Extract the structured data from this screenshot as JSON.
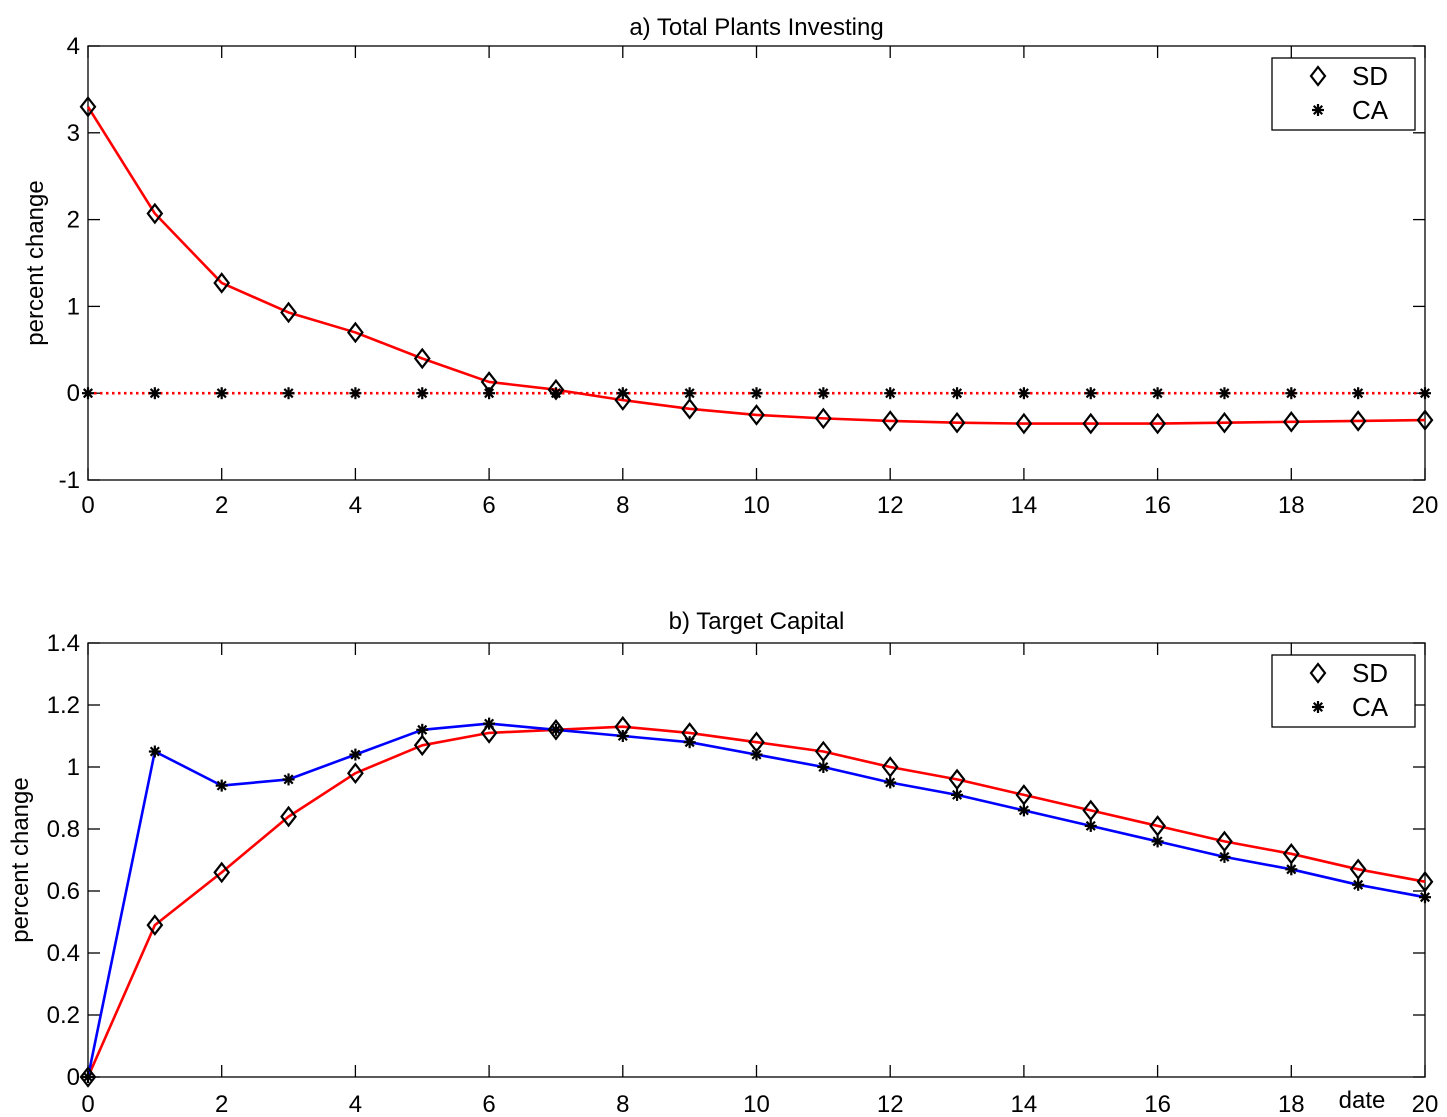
{
  "chart_data": [
    {
      "type": "line",
      "title": "a) Total Plants Investing",
      "xlabel": "",
      "ylabel": "percent change",
      "xlim": [
        0,
        20
      ],
      "ylim": [
        -1,
        4
      ],
      "xticks": [
        0,
        2,
        4,
        6,
        8,
        10,
        12,
        14,
        16,
        18,
        20
      ],
      "yticks": [
        -1,
        0,
        1,
        2,
        3,
        4
      ],
      "grid": false,
      "legend": "top-right",
      "x": [
        0,
        1,
        2,
        3,
        4,
        5,
        6,
        7,
        8,
        9,
        10,
        11,
        12,
        13,
        14,
        15,
        16,
        17,
        18,
        19,
        20
      ],
      "series": [
        {
          "name": "SD",
          "color": "#ff0000",
          "line": "solid",
          "marker": "diamond",
          "values": [
            3.3,
            2.07,
            1.27,
            0.93,
            0.7,
            0.4,
            0.13,
            0.04,
            -0.08,
            -0.18,
            -0.25,
            -0.29,
            -0.32,
            -0.34,
            -0.35,
            -0.35,
            -0.35,
            -0.34,
            -0.33,
            -0.32,
            -0.31
          ]
        },
        {
          "name": "CA",
          "color": "#ff0000",
          "line": "dotted",
          "marker": "asterisk",
          "values": [
            0,
            0,
            0,
            0,
            0,
            0,
            0,
            0,
            0,
            0,
            0,
            0,
            0,
            0,
            0,
            0,
            0,
            0,
            0,
            0,
            0
          ]
        }
      ]
    },
    {
      "type": "line",
      "title": "b) Target Capital",
      "xlabel": "date",
      "ylabel": "percent change",
      "xlim": [
        0,
        20
      ],
      "ylim": [
        0,
        1.4
      ],
      "xticks": [
        0,
        2,
        4,
        6,
        8,
        10,
        12,
        14,
        16,
        18,
        20
      ],
      "yticks": [
        0,
        0.2,
        0.4,
        0.6,
        0.8,
        1,
        1.2,
        1.4
      ],
      "grid": false,
      "legend": "top-right",
      "x": [
        0,
        1,
        2,
        3,
        4,
        5,
        6,
        7,
        8,
        9,
        10,
        11,
        12,
        13,
        14,
        15,
        16,
        17,
        18,
        19,
        20
      ],
      "series": [
        {
          "name": "SD",
          "color": "#ff0000",
          "line": "solid",
          "marker": "diamond",
          "values": [
            0,
            0.49,
            0.66,
            0.84,
            0.98,
            1.07,
            1.11,
            1.12,
            1.13,
            1.11,
            1.08,
            1.05,
            1.0,
            0.96,
            0.91,
            0.86,
            0.81,
            0.76,
            0.72,
            0.67,
            0.63
          ]
        },
        {
          "name": "CA",
          "color": "#0000ff",
          "line": "solid",
          "marker": "asterisk",
          "values": [
            0,
            1.05,
            0.94,
            0.96,
            1.04,
            1.12,
            1.14,
            1.12,
            1.1,
            1.08,
            1.04,
            1.0,
            0.95,
            0.91,
            0.86,
            0.81,
            0.76,
            0.71,
            0.67,
            0.62,
            0.58
          ]
        }
      ]
    }
  ]
}
